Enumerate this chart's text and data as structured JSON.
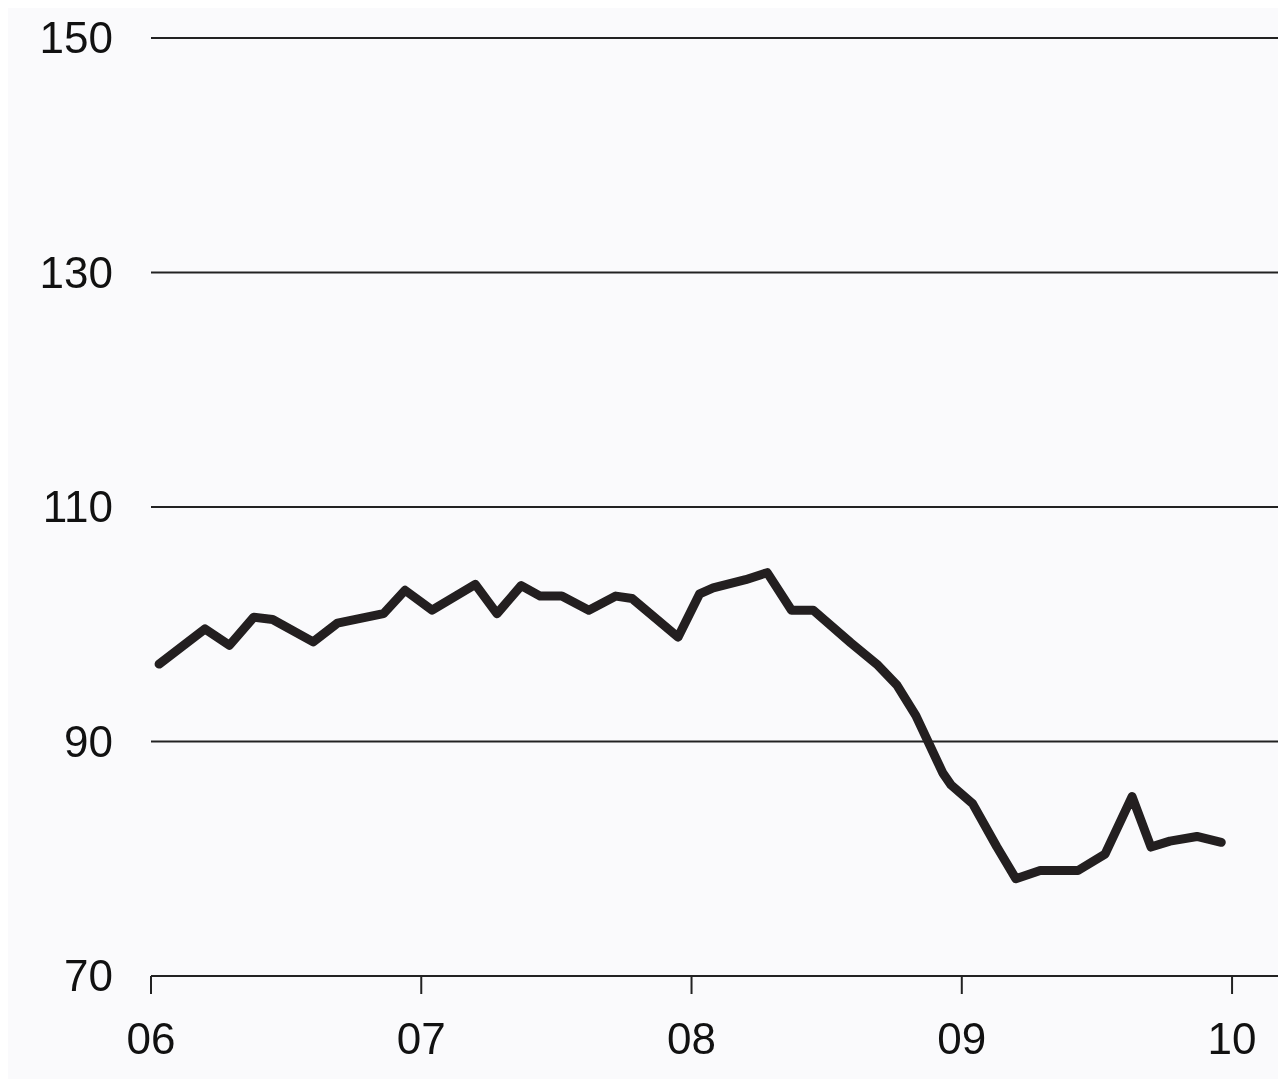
{
  "chart_data": {
    "type": "line",
    "x": [
      2006.03,
      2006.2,
      2006.29,
      2006.38,
      2006.45,
      2006.6,
      2006.69,
      2006.86,
      2006.94,
      2007.04,
      2007.2,
      2007.28,
      2007.37,
      2007.44,
      2007.52,
      2007.62,
      2007.72,
      2007.78,
      2007.95,
      2008.03,
      2008.08,
      2008.2,
      2008.28,
      2008.37,
      2008.45,
      2008.59,
      2008.69,
      2008.76,
      2008.83,
      2008.93,
      2008.96,
      2009.04,
      2009.13,
      2009.2,
      2009.29,
      2009.43,
      2009.53,
      2009.63,
      2009.7,
      2009.77,
      2009.87,
      2009.96
    ],
    "series": [
      {
        "color": "#231f20",
        "values": [
          96.6,
          99.6,
          98.2,
          100.6,
          100.4,
          98.5,
          100.1,
          100.9,
          102.9,
          101.2,
          103.4,
          100.9,
          103.3,
          102.4,
          102.4,
          101.2,
          102.4,
          102.2,
          98.9,
          102.6,
          103.1,
          103.8,
          104.4,
          101.2,
          101.2,
          98.4,
          96.5,
          94.8,
          92.2,
          87.3,
          86.3,
          84.7,
          81,
          78.3,
          79,
          79,
          80.4,
          85.3,
          81,
          81.5,
          81.9,
          81.4
        ]
      }
    ],
    "xlim": [
      2006,
      2010.17
    ],
    "xticks": [
      {
        "value": 2006,
        "label": "06"
      },
      {
        "value": 2007,
        "label": "07"
      },
      {
        "value": 2008,
        "label": "08"
      },
      {
        "value": 2009,
        "label": "09"
      },
      {
        "value": 2010,
        "label": "10"
      }
    ],
    "ylim": [
      70,
      150
    ],
    "yticks": [
      70,
      90,
      110,
      130,
      150
    ],
    "grid": "y",
    "marker": "none",
    "line_style": "solid"
  }
}
